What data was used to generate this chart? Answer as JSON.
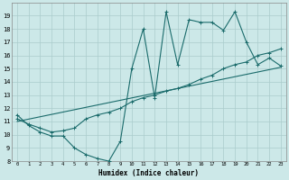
{
  "xlabel": "Humidex (Indice chaleur)",
  "bg_color": "#cce8e8",
  "grid_color": "#aacccc",
  "line_color": "#1a6b6b",
  "xlim": [
    -0.5,
    23.5
  ],
  "ylim": [
    8,
    20
  ],
  "yticks": [
    8,
    9,
    10,
    11,
    12,
    13,
    14,
    15,
    16,
    17,
    18,
    19
  ],
  "xticks": [
    0,
    1,
    2,
    3,
    4,
    5,
    6,
    7,
    8,
    9,
    10,
    11,
    12,
    13,
    14,
    15,
    16,
    17,
    18,
    19,
    20,
    21,
    22,
    23
  ],
  "line1_x": [
    0,
    1,
    2,
    3,
    4,
    5,
    6,
    7,
    8,
    9,
    10,
    11,
    12,
    13,
    14,
    15,
    16,
    17,
    18,
    19,
    20,
    21,
    22,
    23
  ],
  "line1_y": [
    11.5,
    10.7,
    10.2,
    9.9,
    9.9,
    9.0,
    8.5,
    8.2,
    8.0,
    9.5,
    15.0,
    18.0,
    12.8,
    19.3,
    15.3,
    18.7,
    18.5,
    18.5,
    17.9,
    19.3,
    17.0,
    15.3,
    15.8,
    15.2
  ],
  "line2_x": [
    0,
    1,
    2,
    3,
    4,
    5,
    6,
    7,
    8,
    9,
    10,
    11,
    12,
    13,
    14,
    15,
    16,
    17,
    18,
    19,
    20,
    21,
    22,
    23
  ],
  "line2_y": [
    11.2,
    10.8,
    10.5,
    10.2,
    10.3,
    10.5,
    11.2,
    11.5,
    11.7,
    12.0,
    12.5,
    12.8,
    13.0,
    13.3,
    13.5,
    13.8,
    14.2,
    14.5,
    15.0,
    15.3,
    15.5,
    16.0,
    16.2,
    16.5
  ],
  "line3_x": [
    0,
    23
  ],
  "line3_y": [
    11.0,
    15.1
  ]
}
